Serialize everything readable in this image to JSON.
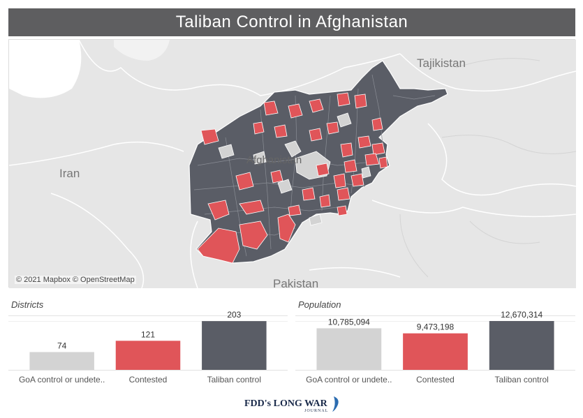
{
  "title": "Taliban Control in Afghanistan",
  "map": {
    "labels": {
      "tajikistan": "Tajikistan",
      "iran": "Iran",
      "afghanistan": "Afghanistan",
      "pakistan": "Pakistan"
    },
    "attribution": "© 2021 Mapbox © OpenStreetMap",
    "colors": {
      "taliban": "#5a5d66",
      "contested": "#e05559",
      "goa": "#d3d3d3",
      "land": "#e6e6e6",
      "border": "#ffffff"
    }
  },
  "logo": {
    "text": "FDD's LONG WAR",
    "subtext": "JOURNAL"
  },
  "chart_data": [
    {
      "type": "bar",
      "title": "Districts",
      "categories": [
        "GoA control or undete..",
        "Contested",
        "Taliban control"
      ],
      "values": [
        74,
        121,
        203
      ],
      "value_labels": [
        "74",
        "121",
        "203"
      ],
      "colors": [
        "#d3d3d3",
        "#e05559",
        "#5a5d66"
      ],
      "ylim": [
        0,
        215
      ]
    },
    {
      "type": "bar",
      "title": "Population",
      "categories": [
        "GoA control or undete..",
        "Contested",
        "Taliban control"
      ],
      "values": [
        10785094,
        9473198,
        12670314
      ],
      "value_labels": [
        "10,785,094",
        "9,473,198",
        "12,670,314"
      ],
      "colors": [
        "#d3d3d3",
        "#e05559",
        "#5a5d66"
      ],
      "ylim": [
        0,
        13400000
      ]
    }
  ]
}
